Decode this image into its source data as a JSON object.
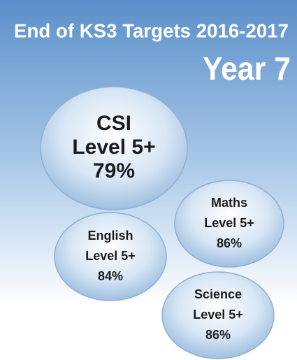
{
  "header": {
    "title": "End of KS3 Targets 2016-2017",
    "subtitle": "Year 7"
  },
  "bubbles": [
    {
      "lines": [
        "CSI",
        "Level 5+",
        "79%"
      ]
    },
    {
      "lines": [
        "Maths",
        "Level 5+",
        "86%"
      ]
    },
    {
      "lines": [
        "English",
        "Level 5+",
        "84%"
      ]
    },
    {
      "lines": [
        "Science",
        "Level 5+",
        "86%"
      ]
    }
  ]
}
